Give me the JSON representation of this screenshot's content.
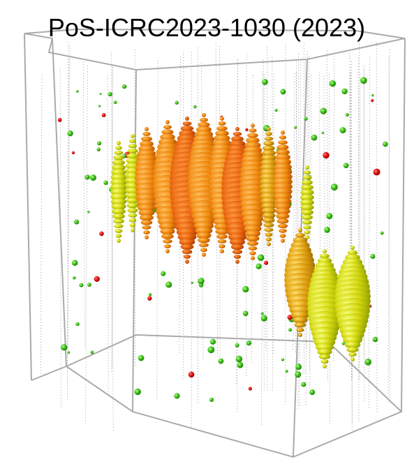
{
  "header": {
    "title": "PoS-ICRC2023-1030 (2023)"
  }
}
